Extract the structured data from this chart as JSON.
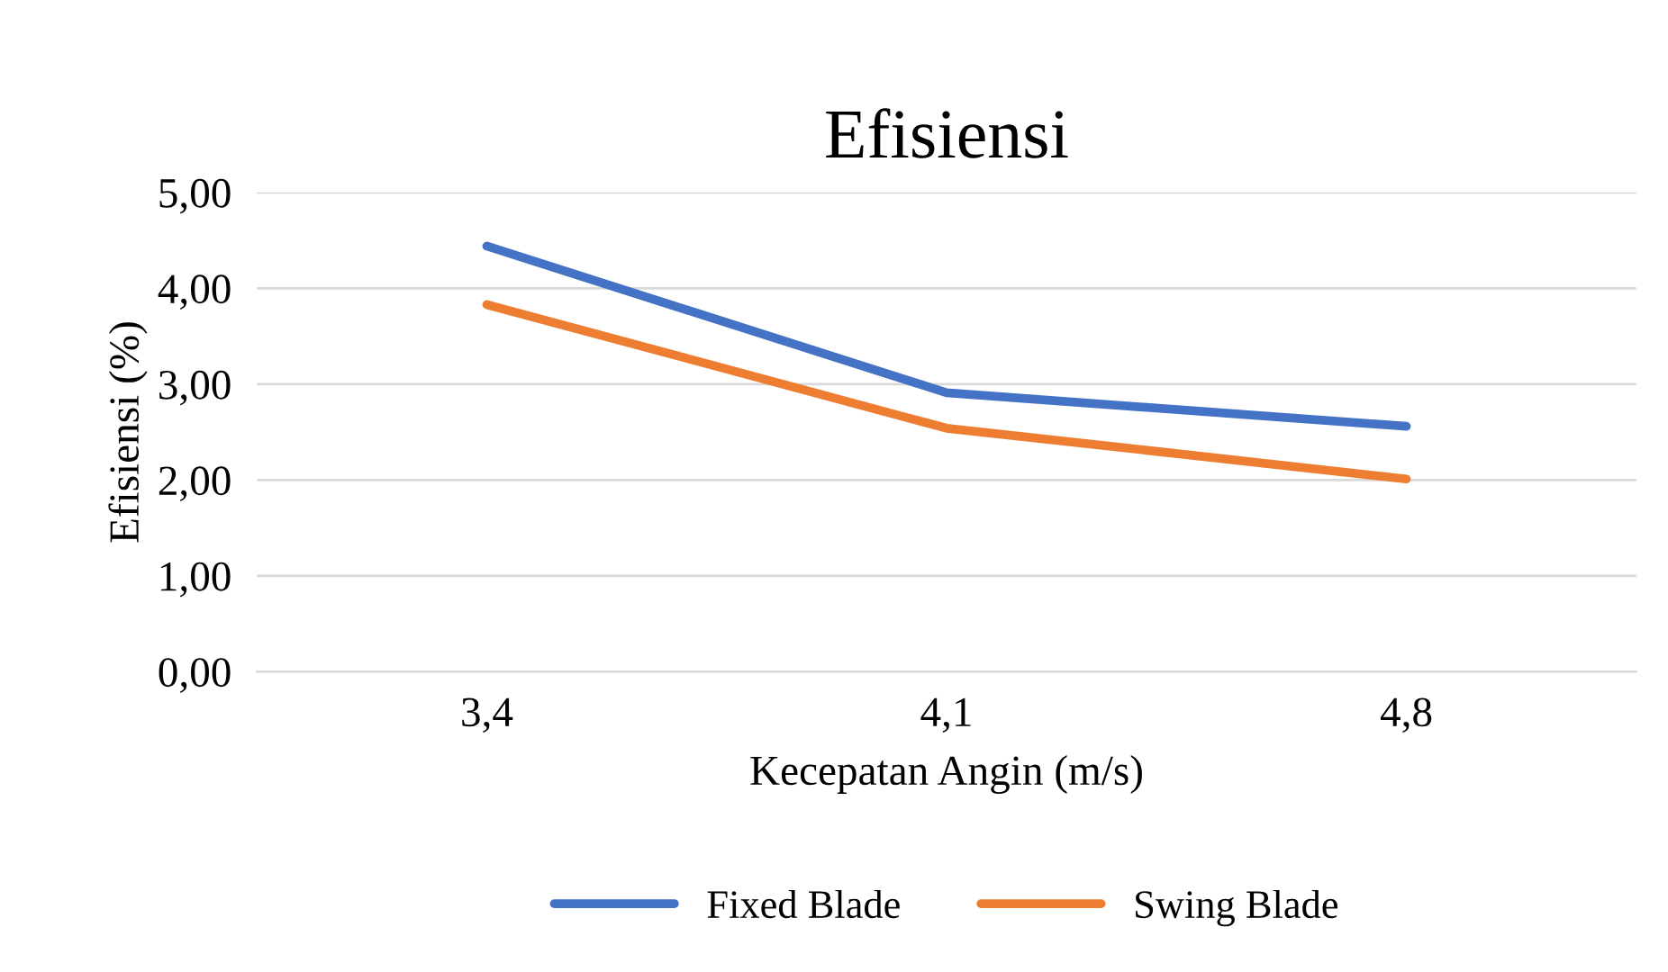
{
  "chart_data": {
    "type": "line",
    "title": "Efisiensi",
    "xlabel": "Kecepatan Angin (m/s)",
    "ylabel": "Efisiensi (%)",
    "categories": [
      "3,4",
      "4,1",
      "4,8"
    ],
    "series": [
      {
        "name": "Fixed Blade",
        "color": "#4472c4",
        "values": [
          4.44,
          2.91,
          2.56
        ]
      },
      {
        "name": "Swing Blade",
        "color": "#ed7d31",
        "values": [
          3.83,
          2.54,
          2.01
        ]
      }
    ],
    "ylim": [
      0,
      5
    ],
    "yticks": [
      {
        "value": 0,
        "label": "0,00"
      },
      {
        "value": 1,
        "label": "1,00"
      },
      {
        "value": 2,
        "label": "2,00"
      },
      {
        "value": 3,
        "label": "3,00"
      },
      {
        "value": 4,
        "label": "4,00"
      },
      {
        "value": 5,
        "label": "5,00"
      }
    ],
    "grid": "y",
    "legend": "bottom",
    "marker": "none",
    "line_style": "solid"
  }
}
